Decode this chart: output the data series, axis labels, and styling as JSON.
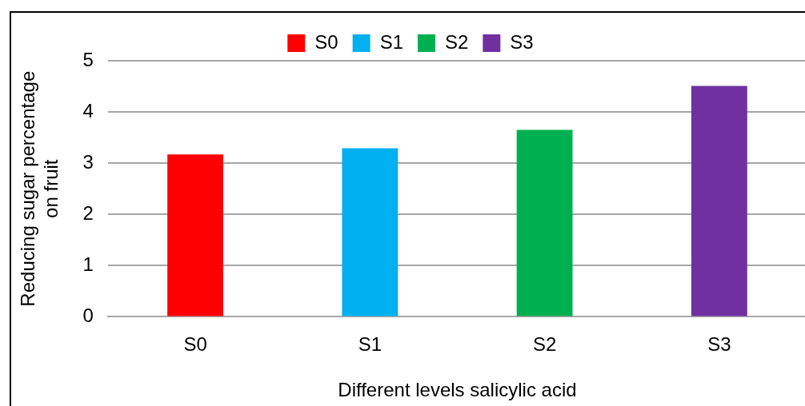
{
  "chart_data": {
    "type": "bar",
    "xlabel": "Different levels salicylic acid",
    "ylabel": "Reducing sugar percentage on fruit",
    "categories": [
      "S0",
      "S1",
      "S2",
      "S3"
    ],
    "series": [
      {
        "name": "S0",
        "color": "#ff0000",
        "values": [
          3.17,
          null,
          null,
          null
        ]
      },
      {
        "name": "S1",
        "color": "#00b0f0",
        "values": [
          null,
          3.29,
          null,
          null
        ]
      },
      {
        "name": "S2",
        "color": "#00b050",
        "values": [
          null,
          null,
          3.65,
          null
        ]
      },
      {
        "name": "S3",
        "color": "#7030a0",
        "values": [
          null,
          null,
          null,
          4.51
        ]
      }
    ],
    "ylim": [
      0,
      5
    ],
    "yticks": [
      0,
      1,
      2,
      3,
      4,
      5
    ],
    "grid": "y",
    "legend": "top"
  }
}
